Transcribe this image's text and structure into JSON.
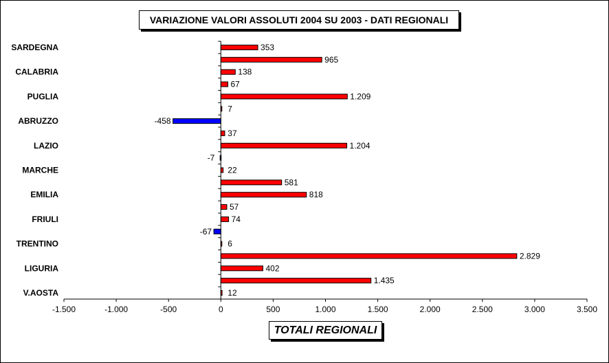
{
  "chart_data": {
    "type": "bar",
    "orientation": "horizontal",
    "title": "VARIAZIONE  VALORI ASSOLUTI 2004 SU 2003 - DATI REGIONALI",
    "xlabel": "TOTALI REGIONALI",
    "ylabel": "",
    "xlim": [
      -1500,
      3500
    ],
    "x_ticks": [
      {
        "value": -1500,
        "label": "-1.500"
      },
      {
        "value": -1000,
        "label": "-1.000"
      },
      {
        "value": -500,
        "label": "-500"
      },
      {
        "value": 0,
        "label": "0"
      },
      {
        "value": 500,
        "label": "500"
      },
      {
        "value": 1000,
        "label": "1.000"
      },
      {
        "value": 1500,
        "label": "1.500"
      },
      {
        "value": 2000,
        "label": "2.000"
      },
      {
        "value": 2500,
        "label": "2.500"
      },
      {
        "value": 3000,
        "label": "3.000"
      },
      {
        "value": 3500,
        "label": "3.500"
      }
    ],
    "grid": false,
    "legend": "none",
    "category_labels": [
      "SARDEGNA",
      "CALABRIA",
      "PUGLIA",
      "ABRUZZO",
      "LAZIO",
      "MARCHE",
      "EMILIA",
      "FRIULI",
      "TRENTINO",
      "LIGURIA",
      "V.AOSTA"
    ],
    "bars": [
      {
        "value": 353,
        "label": "353"
      },
      {
        "value": 965,
        "label": "965"
      },
      {
        "value": 138,
        "label": "138"
      },
      {
        "value": 67,
        "label": "67"
      },
      {
        "value": 1209,
        "label": "1.209"
      },
      {
        "value": 7,
        "label": "7"
      },
      {
        "value": -458,
        "label": "-458"
      },
      {
        "value": 37,
        "label": "37"
      },
      {
        "value": 1204,
        "label": "1.204"
      },
      {
        "value": -7,
        "label": "-7"
      },
      {
        "value": 22,
        "label": "22"
      },
      {
        "value": 581,
        "label": "581"
      },
      {
        "value": 818,
        "label": "818"
      },
      {
        "value": 57,
        "label": "57"
      },
      {
        "value": 74,
        "label": "74"
      },
      {
        "value": -67,
        "label": "-67"
      },
      {
        "value": 6,
        "label": "6"
      },
      {
        "value": 2829,
        "label": "2.829"
      },
      {
        "value": 402,
        "label": "402"
      },
      {
        "value": 1435,
        "label": "1.435"
      },
      {
        "value": 12,
        "label": "12"
      }
    ],
    "colors": {
      "positive": "#ff0000",
      "negative": "#0000ff",
      "outline": "#000000"
    }
  }
}
